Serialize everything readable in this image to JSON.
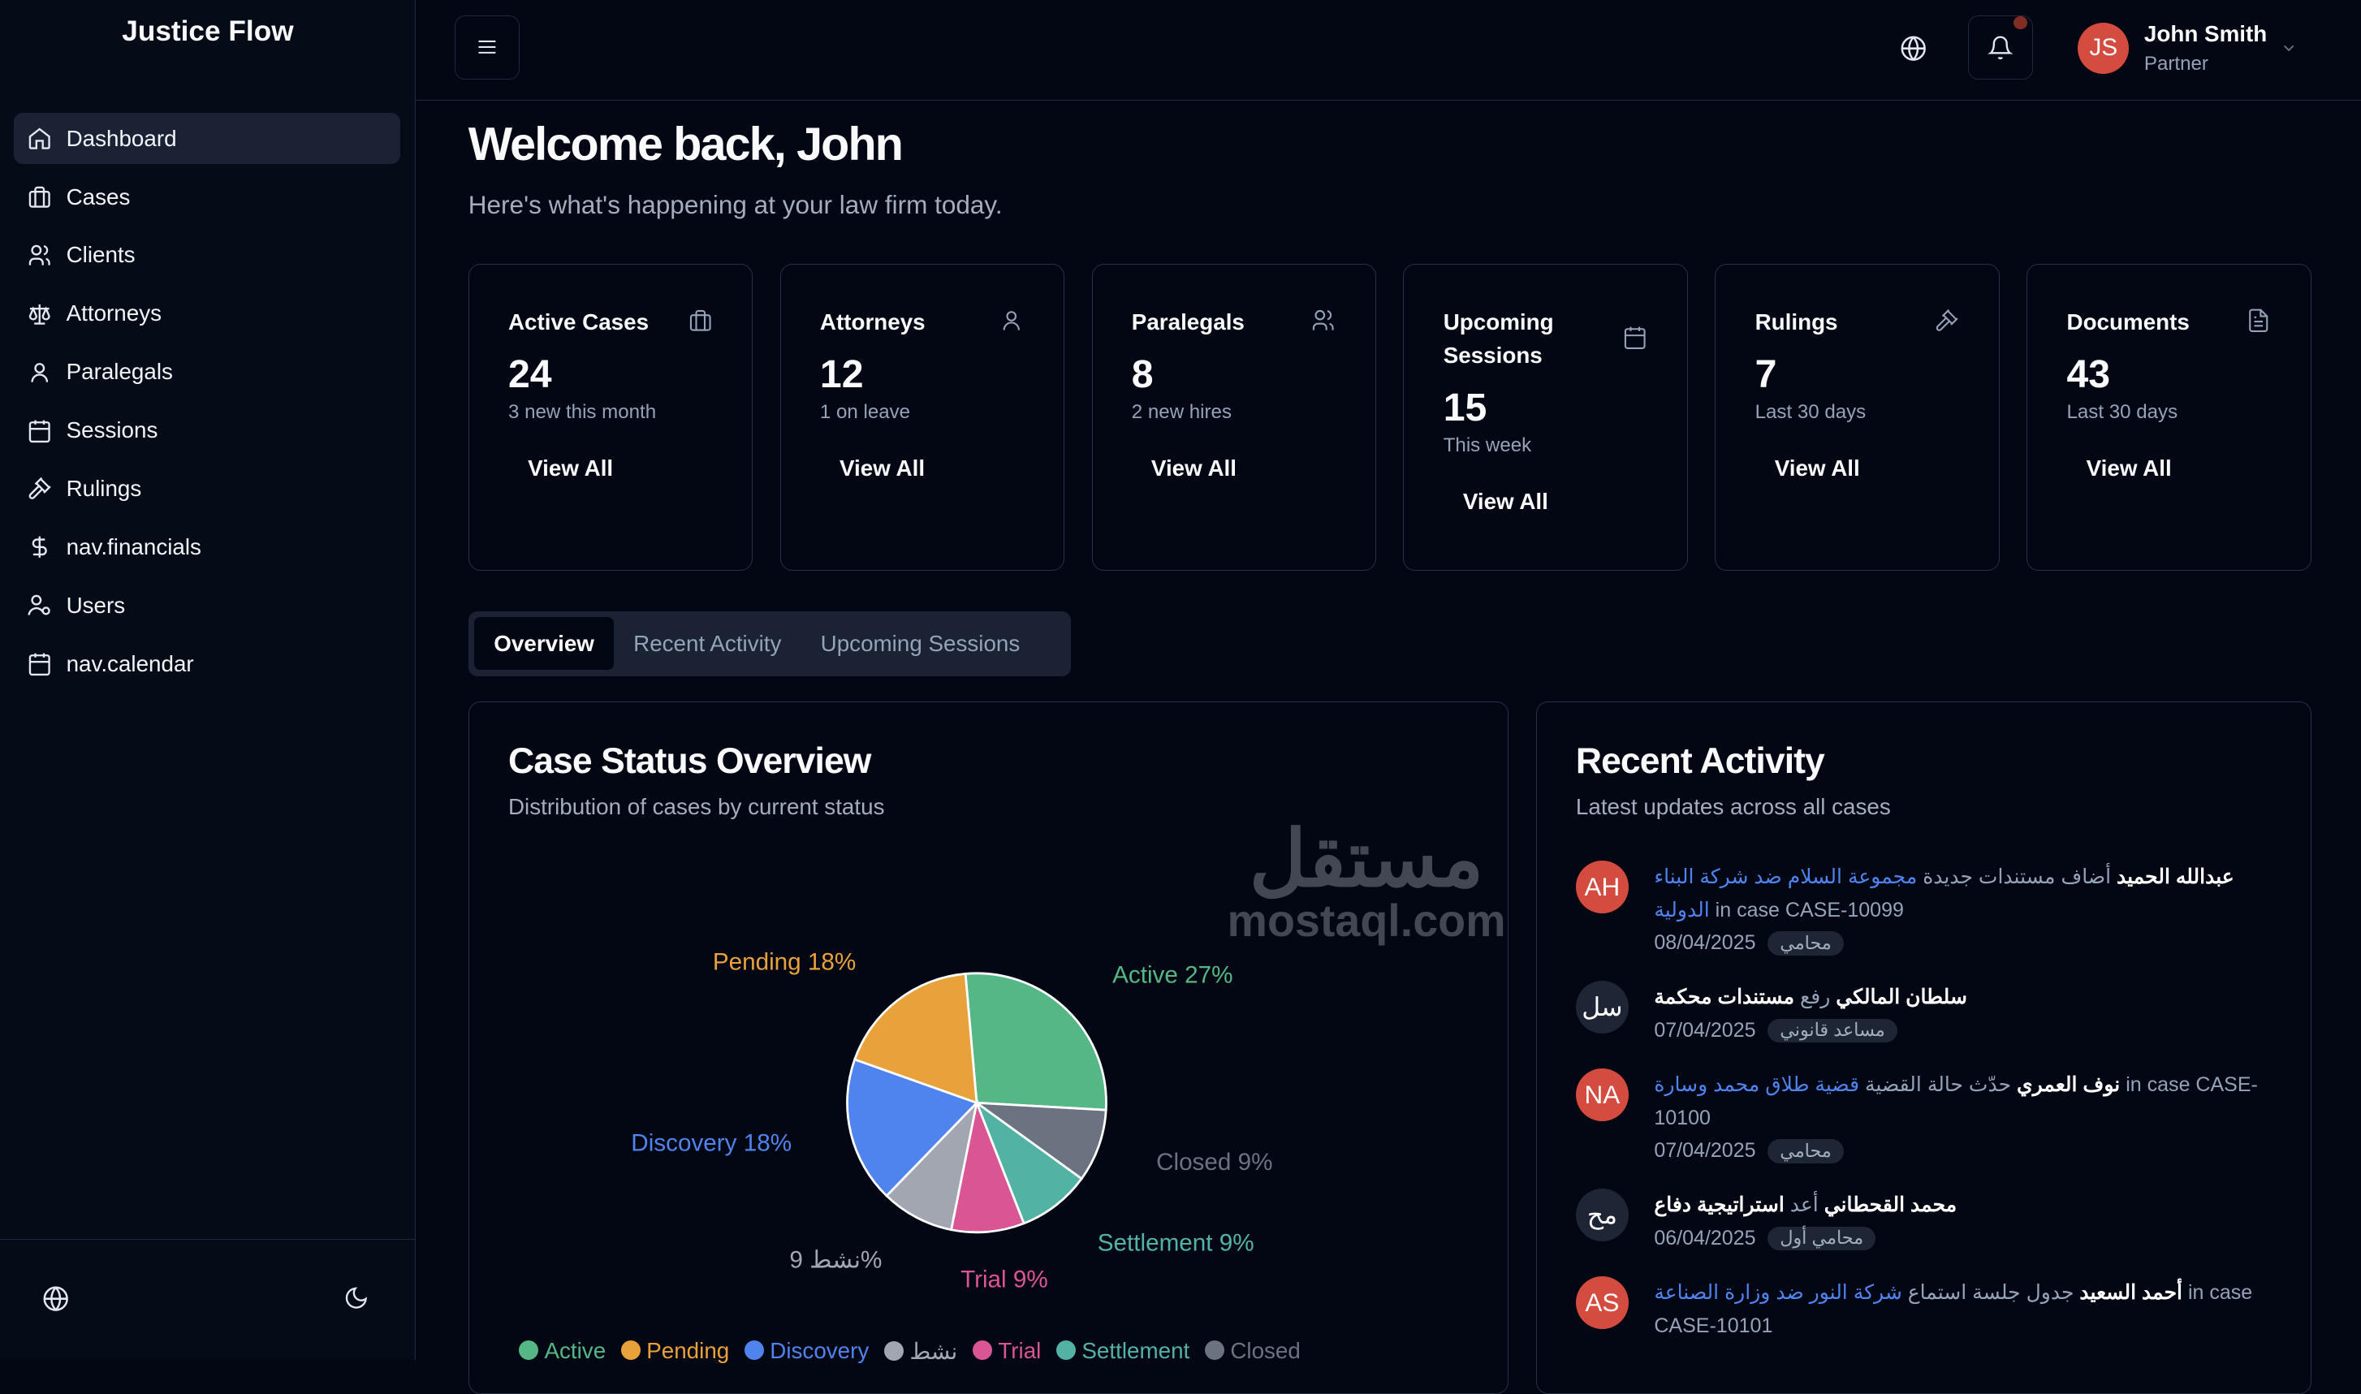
{
  "app": {
    "title": "Justice Flow"
  },
  "sidebar": {
    "items": [
      {
        "label": "Dashboard",
        "icon": "home-icon",
        "active": true
      },
      {
        "label": "Cases",
        "icon": "briefcase-icon"
      },
      {
        "label": "Clients",
        "icon": "users-icon"
      },
      {
        "label": "Attorneys",
        "icon": "scale-icon"
      },
      {
        "label": "Paralegals",
        "icon": "user-icon"
      },
      {
        "label": "Sessions",
        "icon": "calendar-icon"
      },
      {
        "label": "Rulings",
        "icon": "gavel-icon"
      },
      {
        "label": "nav.financials",
        "icon": "dollar-icon"
      },
      {
        "label": "Users",
        "icon": "user-cog-icon"
      },
      {
        "label": "nav.calendar",
        "icon": "calendar-icon"
      }
    ]
  },
  "header": {
    "user": {
      "initials": "JS",
      "name": "John Smith",
      "role": "Partner"
    },
    "notification_dot_color": "#7f2d25"
  },
  "welcome": {
    "title": "Welcome back, John",
    "subtitle": "Here's what's happening at your law firm today."
  },
  "stats": [
    {
      "title": "Active Cases",
      "value": "24",
      "desc": "3 new this month",
      "action": "View All",
      "icon": "briefcase-icon"
    },
    {
      "title": "Attorneys",
      "value": "12",
      "desc": "1 on leave",
      "action": "View All",
      "icon": "user-icon"
    },
    {
      "title": "Paralegals",
      "value": "8",
      "desc": "2 new hires",
      "action": "View All",
      "icon": "users-icon"
    },
    {
      "title": "Upcoming Sessions",
      "value": "15",
      "desc": "This week",
      "action": "View All",
      "icon": "calendar-icon"
    },
    {
      "title": "Rulings",
      "value": "7",
      "desc": "Last 30 days",
      "action": "View All",
      "icon": "gavel-icon"
    },
    {
      "title": "Documents",
      "value": "43",
      "desc": "Last 30 days",
      "action": "View All",
      "icon": "file-icon"
    }
  ],
  "tabs": [
    {
      "label": "Overview",
      "active": true
    },
    {
      "label": "Recent Activity"
    },
    {
      "label": "Upcoming Sessions"
    }
  ],
  "case_status": {
    "title": "Case Status Overview",
    "subtitle": "Distribution of cases by current status"
  },
  "chart_data": {
    "type": "pie",
    "categories": [
      "Active",
      "Closed",
      "Settlement",
      "Trial",
      "نشط",
      "Discovery",
      "Pending"
    ],
    "values": [
      27,
      9,
      9,
      9,
      9,
      18,
      18
    ],
    "labels": [
      "Active 27%",
      "Closed 9%",
      "Settlement 9%",
      "Trial 9%",
      "9 نشط%",
      "Discovery 18%",
      "Pending 18%"
    ],
    "colors": [
      "#55b785",
      "#6b7280",
      "#52b3a5",
      "#d95593",
      "#a1a6b0",
      "#4f83ed",
      "#e9a23b"
    ],
    "legend": {
      "placement": "bottom",
      "entries": [
        "Active",
        "Pending",
        "Discovery",
        "نشط",
        "Trial",
        "Settlement",
        "Closed"
      ],
      "colors": [
        "#55b785",
        "#e9a23b",
        "#4f83ed",
        "#a1a6b0",
        "#d95593",
        "#52b3a5",
        "#6b7280"
      ]
    }
  },
  "recent": {
    "title": "Recent Activity",
    "subtitle": "Latest updates across all cases",
    "items": [
      {
        "initials": "AH",
        "avatar_color": "#d44b3f",
        "name": "عبدالله الحميد",
        "action": "أضاف مستندات جديدة",
        "case_name": "مجموعة السلام ضد شركة البناء الدولية",
        "suffix": "in case CASE-10099",
        "date": "08/04/2025",
        "role": "محامي"
      },
      {
        "initials": "سل",
        "avatar_color": "#1e2636",
        "name": "سلطان المالكي",
        "action": "رفع",
        "case_name": "مستندات محكمة",
        "suffix": "",
        "date": "07/04/2025",
        "role": "مساعد قانوني"
      },
      {
        "initials": "NA",
        "avatar_color": "#d44b3f",
        "name": "نوف العمري",
        "action": "حدّث حالة القضية",
        "case_name": "قضية طلاق محمد وسارة",
        "suffix": "in case CASE-10100",
        "date": "07/04/2025",
        "role": "محامي"
      },
      {
        "initials": "مح",
        "avatar_color": "#1e2636",
        "name": "محمد القحطاني",
        "action": "أعد",
        "case_name": "استراتيجية دفاع",
        "suffix": "",
        "date": "06/04/2025",
        "role": "محامي أول"
      },
      {
        "initials": "AS",
        "avatar_color": "#d44b3f",
        "name": "أحمد السعيد",
        "action": "جدول جلسة استماع",
        "case_name": "شركة النور ضد وزارة الصناعة",
        "suffix": "in case CASE-10101",
        "date": "",
        "role": ""
      }
    ]
  },
  "watermark": {
    "arabic": "مستقل",
    "latin": "mostaql.com"
  }
}
